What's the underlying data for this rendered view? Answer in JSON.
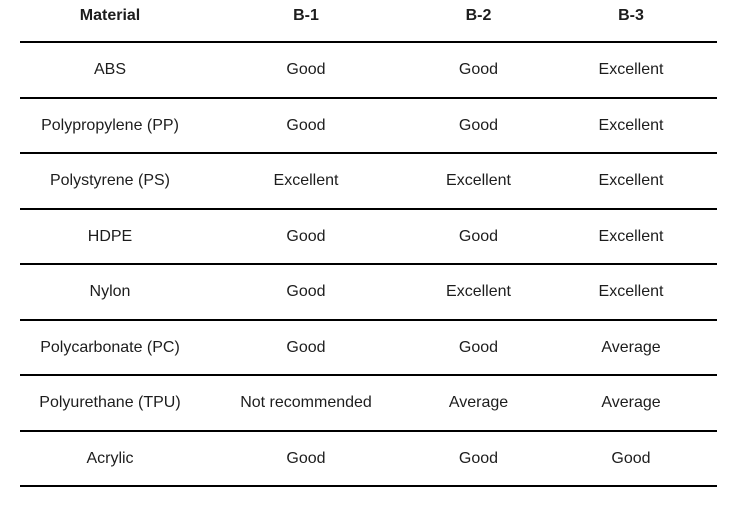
{
  "colors": {
    "background": "#ffffff",
    "text": "#1d1d1d",
    "rule_line": "#000000"
  },
  "chart_data": {
    "type": "table",
    "columns": [
      "Material",
      "B-1",
      "B-2",
      "B-3"
    ],
    "rows": [
      [
        "ABS",
        "Good",
        "Good",
        "Excellent"
      ],
      [
        "Polypropylene (PP)",
        "Good",
        "Good",
        "Excellent"
      ],
      [
        "Polystyrene (PS)",
        "Excellent",
        "Excellent",
        "Excellent"
      ],
      [
        "HDPE",
        "Good",
        "Good",
        "Excellent"
      ],
      [
        "Nylon",
        "Good",
        "Excellent",
        "Excellent"
      ],
      [
        "Polycarbonate (PC)",
        "Good",
        "Good",
        "Average"
      ],
      [
        "Polyurethane (TPU)",
        "Not recommended",
        "Average",
        "Average"
      ],
      [
        "Acrylic",
        "Good",
        "Good",
        "Good"
      ]
    ],
    "layout": {
      "grid": "horizontal-rules-only",
      "header_style": "bold",
      "cell_alignment": "center"
    }
  }
}
